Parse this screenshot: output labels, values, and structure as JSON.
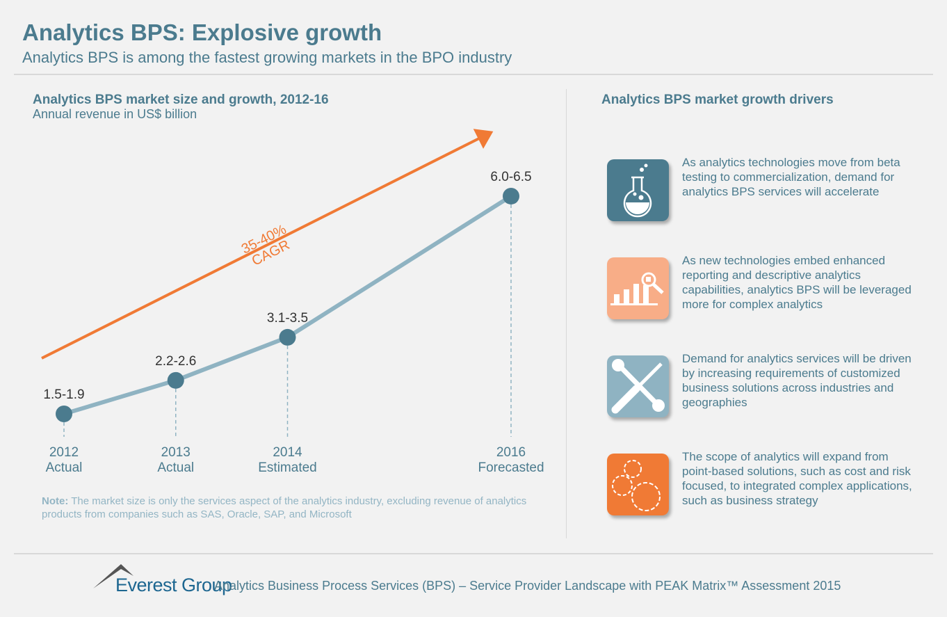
{
  "header": {
    "title": "Analytics BPS: Explosive growth",
    "subtitle": "Analytics BPS is among the fastest growing markets in the BPO industry"
  },
  "chart_data": {
    "type": "line",
    "title": "Analytics BPS market size and growth, 2012-16",
    "subtitle": "Annual revenue in US$ billion",
    "points": [
      {
        "year": 2012,
        "status": "Actual",
        "low": 1.5,
        "high": 1.9,
        "label": "1.5-1.9"
      },
      {
        "year": 2013,
        "status": "Actual",
        "low": 2.2,
        "high": 2.6,
        "label": "2.2-2.6"
      },
      {
        "year": 2014,
        "status": "Estimated",
        "low": 3.1,
        "high": 3.5,
        "label": "3.1-3.5"
      },
      {
        "year": 2016,
        "status": "Forecasted",
        "low": 6.0,
        "high": 6.5,
        "label": "6.0-6.5"
      }
    ],
    "cagr_annotation": [
      "35-40%",
      "CAGR"
    ],
    "colors": {
      "line": "#8fb3c2",
      "marker": "#4b7b8e",
      "arrow": "#f07a35"
    }
  },
  "note": {
    "label": "Note:",
    "text": " The market size is only the services aspect of the analytics industry, excluding revenue of analytics products from companies such as SAS, Oracle, SAP, and Microsoft"
  },
  "drivers": {
    "title": "Analytics BPS market growth drivers",
    "items": [
      {
        "icon": "flask-icon",
        "color": "#4b7b8e",
        "text": "As analytics technologies move from beta testing to commercialization, demand for analytics BPS services will accelerate"
      },
      {
        "icon": "bar-chart-magnifier-icon",
        "color": "#f8ad87",
        "text": "As new technologies embed enhanced reporting and descriptive analytics capabilities, analytics BPS will be leveraged more for complex analytics"
      },
      {
        "icon": "wrench-screwdriver-icon",
        "color": "#8fb3c2",
        "text": "Demand for analytics services will be driven by increasing requirements of customized business solutions across industries and geographies"
      },
      {
        "icon": "gears-icon",
        "color": "#f07a35",
        "text": "The scope of analytics will expand from point-based solutions, such as cost and risk focused, to integrated complex applications, such as business strategy"
      }
    ]
  },
  "footer": {
    "logo": "Everest Group",
    "text": "Analytics Business Process Services (BPS) – Service Provider Landscape with PEAK Matrix™ Assessment 2015"
  }
}
